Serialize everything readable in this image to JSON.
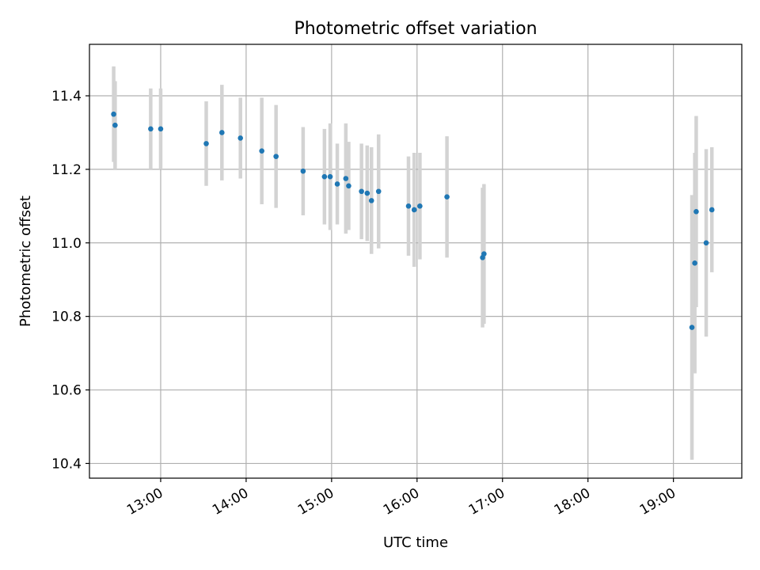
{
  "chart_data": {
    "type": "scatter",
    "title": "Photometric offset variation",
    "xlabel": "UTC time",
    "ylabel": "Photometric offset",
    "xlim": [
      "12:10",
      "19:48"
    ],
    "ylim": [
      10.36,
      11.54
    ],
    "grid": true,
    "x_ticks": [
      "13:00",
      "14:00",
      "15:00",
      "16:00",
      "17:00",
      "18:00",
      "19:00"
    ],
    "y_ticks": [
      "10.4",
      "10.6",
      "10.8",
      "11.0",
      "11.2",
      "11.4"
    ],
    "marker_color": "#1f77b4",
    "errorbar_color": "#d3d3d3",
    "points": [
      {
        "x": "12:27",
        "y": 11.35,
        "err": 0.13
      },
      {
        "x": "12:28",
        "y": 11.32,
        "err": 0.12
      },
      {
        "x": "12:53",
        "y": 11.31,
        "err": 0.11
      },
      {
        "x": "13:00",
        "y": 11.31,
        "err": 0.11
      },
      {
        "x": "13:32",
        "y": 11.27,
        "err": 0.115
      },
      {
        "x": "13:43",
        "y": 11.3,
        "err": 0.13
      },
      {
        "x": "13:56",
        "y": 11.285,
        "err": 0.11
      },
      {
        "x": "14:11",
        "y": 11.25,
        "err": 0.145
      },
      {
        "x": "14:21",
        "y": 11.235,
        "err": 0.14
      },
      {
        "x": "14:40",
        "y": 11.195,
        "err": 0.12
      },
      {
        "x": "14:55",
        "y": 11.18,
        "err": 0.13
      },
      {
        "x": "14:59",
        "y": 11.18,
        "err": 0.145
      },
      {
        "x": "15:04",
        "y": 11.16,
        "err": 0.11
      },
      {
        "x": "15:10",
        "y": 11.175,
        "err": 0.15
      },
      {
        "x": "15:12",
        "y": 11.155,
        "err": 0.12
      },
      {
        "x": "15:21",
        "y": 11.14,
        "err": 0.13
      },
      {
        "x": "15:25",
        "y": 11.135,
        "err": 0.13
      },
      {
        "x": "15:28",
        "y": 11.115,
        "err": 0.145
      },
      {
        "x": "15:33",
        "y": 11.14,
        "err": 0.155
      },
      {
        "x": "15:54",
        "y": 11.1,
        "err": 0.135
      },
      {
        "x": "15:58",
        "y": 11.09,
        "err": 0.155
      },
      {
        "x": "16:02",
        "y": 11.1,
        "err": 0.145
      },
      {
        "x": "16:21",
        "y": 11.125,
        "err": 0.165
      },
      {
        "x": "16:46",
        "y": 10.96,
        "err": 0.19
      },
      {
        "x": "16:47",
        "y": 10.97,
        "err": 0.19
      },
      {
        "x": "19:13",
        "y": 10.77,
        "err": 0.36
      },
      {
        "x": "19:15",
        "y": 10.945,
        "err": 0.3
      },
      {
        "x": "19:16",
        "y": 11.085,
        "err": 0.26
      },
      {
        "x": "19:23",
        "y": 11.0,
        "err": 0.255
      },
      {
        "x": "19:27",
        "y": 11.09,
        "err": 0.17
      }
    ]
  }
}
